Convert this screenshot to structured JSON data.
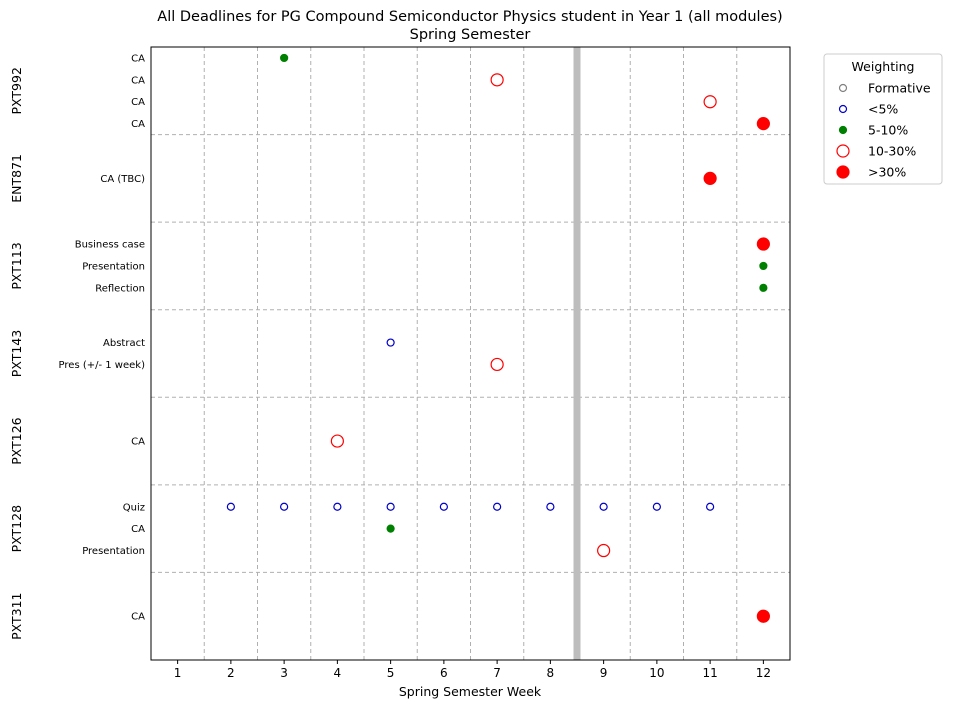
{
  "chart_data": {
    "type": "scatter",
    "title": "All Deadlines for PG Compound Semiconductor Physics student in Year 1 (all modules)",
    "subtitle": "Spring Semester",
    "xlabel": "Spring Semester Week",
    "ylabel": "",
    "xlim": [
      0.5,
      12.5
    ],
    "x_ticks": [
      "1",
      "2",
      "3",
      "4",
      "5",
      "6",
      "7",
      "8",
      "9",
      "10",
      "11",
      "12"
    ],
    "grid": true,
    "break_week": 8.5,
    "legend": {
      "title": "Weighting",
      "placement": "outside top-right",
      "entries": [
        {
          "key": "formative",
          "label": "Formative"
        },
        {
          "key": "lt5",
          "label": "<5%"
        },
        {
          "key": "5to10",
          "label": "5-10%"
        },
        {
          "key": "10to30",
          "label": "10-30%"
        },
        {
          "key": "gt30",
          "label": ">30%"
        }
      ]
    },
    "weight_styles": {
      "formative": {
        "color": "#808080",
        "filled": false,
        "size": 3.5
      },
      "lt5": {
        "color": "#0000cc",
        "filled": false,
        "size": 3.5
      },
      "5to10": {
        "color": "#008000",
        "filled": true,
        "size": 3.5
      },
      "10to30": {
        "color": "#ff0000",
        "filled": false,
        "size": 6
      },
      "gt30": {
        "color": "#ff0000",
        "filled": true,
        "size": 6
      }
    },
    "modules": [
      {
        "name": "PXT992",
        "tasks": [
          {
            "label": "CA",
            "points": [
              {
                "week": 3,
                "weight": "5to10"
              }
            ]
          },
          {
            "label": "CA",
            "points": [
              {
                "week": 7,
                "weight": "10to30"
              }
            ]
          },
          {
            "label": "CA",
            "points": [
              {
                "week": 11,
                "weight": "10to30"
              }
            ]
          },
          {
            "label": "CA",
            "points": [
              {
                "week": 12,
                "weight": "gt30"
              }
            ]
          }
        ]
      },
      {
        "name": "ENT871",
        "tasks": [
          {
            "label": "CA (TBC)",
            "points": [
              {
                "week": 11,
                "weight": "gt30"
              }
            ]
          }
        ]
      },
      {
        "name": "PXT113",
        "tasks": [
          {
            "label": "Business case",
            "points": [
              {
                "week": 12,
                "weight": "gt30"
              }
            ]
          },
          {
            "label": "Presentation",
            "points": [
              {
                "week": 12,
                "weight": "5to10"
              }
            ]
          },
          {
            "label": "Reflection",
            "points": [
              {
                "week": 12,
                "weight": "5to10"
              }
            ]
          }
        ]
      },
      {
        "name": "PXT143",
        "tasks": [
          {
            "label": "Abstract",
            "points": [
              {
                "week": 5,
                "weight": "lt5"
              }
            ]
          },
          {
            "label": "Pres (+/- 1 week)",
            "points": [
              {
                "week": 7,
                "weight": "10to30"
              }
            ]
          }
        ]
      },
      {
        "name": "PXT126",
        "tasks": [
          {
            "label": "CA",
            "points": [
              {
                "week": 4,
                "weight": "10to30"
              }
            ]
          }
        ]
      },
      {
        "name": "PXT128",
        "tasks": [
          {
            "label": "Quiz",
            "points": [
              {
                "week": 2,
                "weight": "lt5"
              },
              {
                "week": 3,
                "weight": "lt5"
              },
              {
                "week": 4,
                "weight": "lt5"
              },
              {
                "week": 5,
                "weight": "lt5"
              },
              {
                "week": 6,
                "weight": "lt5"
              },
              {
                "week": 7,
                "weight": "lt5"
              },
              {
                "week": 8,
                "weight": "lt5"
              },
              {
                "week": 9,
                "weight": "lt5"
              },
              {
                "week": 10,
                "weight": "lt5"
              },
              {
                "week": 11,
                "weight": "lt5"
              }
            ]
          },
          {
            "label": "CA",
            "points": [
              {
                "week": 5,
                "weight": "5to10"
              }
            ]
          },
          {
            "label": "Presentation",
            "points": [
              {
                "week": 9,
                "weight": "10to30"
              }
            ]
          }
        ]
      },
      {
        "name": "PXT311",
        "tasks": [
          {
            "label": "CA",
            "points": [
              {
                "week": 12,
                "weight": "gt30"
              }
            ]
          }
        ]
      }
    ]
  }
}
